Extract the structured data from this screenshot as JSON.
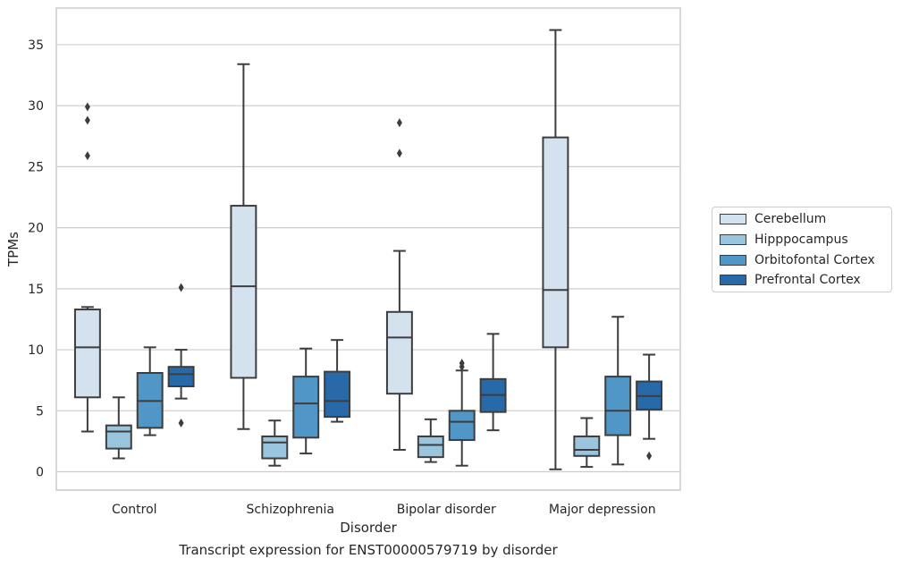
{
  "caption": "Transcript expression for ENST00000579719 by disorder",
  "chart_data": {
    "type": "boxplot",
    "xlabel": "Disorder",
    "ylabel": "TPMs",
    "ylim": [
      -1.5,
      38
    ],
    "yticks": [
      0,
      5,
      10,
      15,
      20,
      25,
      30,
      35
    ],
    "grid": "horizontal",
    "legend_placement": "outside-right",
    "categories": [
      "Control",
      "Schizophrenia",
      "Bipolar disorder",
      "Major depression"
    ],
    "series": [
      {
        "name": "Cerebellum",
        "color": "#d4e2f0",
        "boxes": [
          {
            "whislo": 3.3,
            "q1": 6.1,
            "med": 10.2,
            "q3": 13.3,
            "whishi": 13.5,
            "fliers": [
              25.9,
              28.8,
              29.9
            ]
          },
          {
            "whislo": 3.5,
            "q1": 7.7,
            "med": 15.2,
            "q3": 21.8,
            "whishi": 33.4,
            "fliers": []
          },
          {
            "whislo": 1.8,
            "q1": 6.4,
            "med": 11.0,
            "q3": 13.1,
            "whishi": 18.1,
            "fliers": [
              26.1,
              28.6
            ]
          },
          {
            "whislo": 0.2,
            "q1": 10.2,
            "med": 14.9,
            "q3": 27.4,
            "whishi": 36.2,
            "fliers": []
          }
        ]
      },
      {
        "name": "Hipppocampus",
        "color": "#9ac5df",
        "boxes": [
          {
            "whislo": 1.1,
            "q1": 1.9,
            "med": 3.3,
            "q3": 3.8,
            "whishi": 6.1,
            "fliers": []
          },
          {
            "whislo": 0.5,
            "q1": 1.1,
            "med": 2.4,
            "q3": 2.9,
            "whishi": 4.2,
            "fliers": []
          },
          {
            "whislo": 0.8,
            "q1": 1.2,
            "med": 2.2,
            "q3": 2.9,
            "whishi": 4.3,
            "fliers": []
          },
          {
            "whislo": 0.4,
            "q1": 1.3,
            "med": 1.8,
            "q3": 2.9,
            "whishi": 4.4,
            "fliers": []
          }
        ]
      },
      {
        "name": "Orbitofontal Cortex",
        "color": "#5096c6",
        "boxes": [
          {
            "whislo": 3.0,
            "q1": 3.6,
            "med": 5.8,
            "q3": 8.1,
            "whishi": 10.2,
            "fliers": []
          },
          {
            "whislo": 1.5,
            "q1": 2.8,
            "med": 5.6,
            "q3": 7.8,
            "whishi": 10.1,
            "fliers": []
          },
          {
            "whislo": 0.5,
            "q1": 2.6,
            "med": 4.1,
            "q3": 5.0,
            "whishi": 8.3,
            "fliers": [
              8.6,
              8.9
            ]
          },
          {
            "whislo": 0.6,
            "q1": 3.0,
            "med": 5.0,
            "q3": 7.8,
            "whishi": 12.7,
            "fliers": []
          }
        ]
      },
      {
        "name": "Prefrontal Cortex",
        "color": "#2869aa",
        "boxes": [
          {
            "whislo": 6.0,
            "q1": 7.0,
            "med": 8.0,
            "q3": 8.6,
            "whishi": 10.0,
            "fliers": [
              4.0,
              15.1
            ]
          },
          {
            "whislo": 4.1,
            "q1": 4.5,
            "med": 5.8,
            "q3": 8.2,
            "whishi": 10.8,
            "fliers": []
          },
          {
            "whislo": 3.4,
            "q1": 4.9,
            "med": 6.3,
            "q3": 7.6,
            "whishi": 11.3,
            "fliers": []
          },
          {
            "whislo": 2.7,
            "q1": 5.1,
            "med": 6.2,
            "q3": 7.4,
            "whishi": 9.6,
            "fliers": [
              1.3
            ]
          }
        ]
      }
    ]
  }
}
